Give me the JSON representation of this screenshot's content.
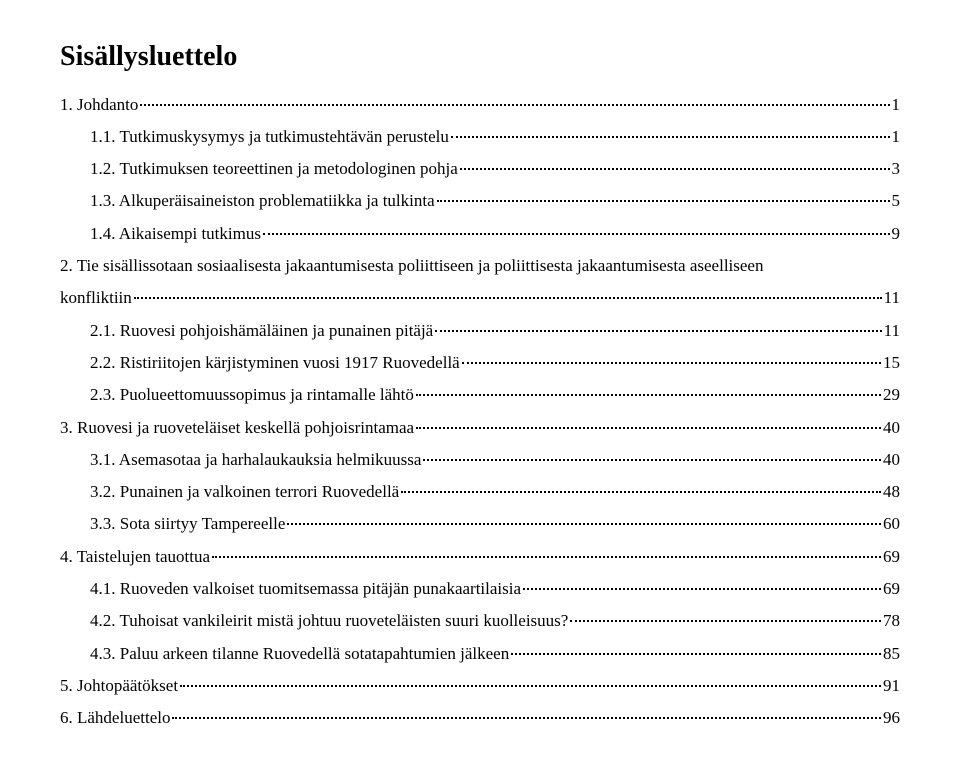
{
  "title": "Sisällysluettelo",
  "entries": [
    {
      "indent": 0,
      "label": "1. Johdanto",
      "page": "1"
    },
    {
      "indent": 1,
      "label": "1.1. Tutkimuskysymys ja tutkimustehtävän perustelu",
      "page": "1"
    },
    {
      "indent": 1,
      "label": "1.2. Tutkimuksen teoreettinen ja metodologinen pohja",
      "page": "3"
    },
    {
      "indent": 1,
      "label": "1.3. Alkuperäisaineiston problematiikka ja tulkinta",
      "page": "5"
    },
    {
      "indent": 1,
      "label": "1.4. Aikaisempi tutkimus",
      "page": "9"
    },
    {
      "indent": 0,
      "label": "2. Tie sisällissotaan sosiaalisesta jakaantumisesta poliittiseen ja poliittisesta jakaantumisesta aseelliseen konfliktiin",
      "page": "11",
      "wrap": true
    },
    {
      "indent": 1,
      "label": "2.1. Ruovesi pohjoishämäläinen ja punainen pitäjä",
      "page": "11"
    },
    {
      "indent": 1,
      "label": "2.2. Ristiriitojen kärjistyminen vuosi 1917 Ruovedellä",
      "page": "15"
    },
    {
      "indent": 1,
      "label": "2.3. Puolueettomuussopimus ja rintamalle lähtö",
      "page": "29"
    },
    {
      "indent": 0,
      "label": "3. Ruovesi ja ruoveteläiset keskellä pohjoisrintamaa",
      "page": "40"
    },
    {
      "indent": 1,
      "label": "3.1. Asemasotaa ja harhalaukauksia helmikuussa",
      "page": "40"
    },
    {
      "indent": 1,
      "label": "3.2. Punainen ja valkoinen terrori Ruovedellä",
      "page": "48"
    },
    {
      "indent": 1,
      "label": "3.3. Sota siirtyy Tampereelle",
      "page": "60"
    },
    {
      "indent": 0,
      "label": "4. Taistelujen tauottua",
      "page": "69"
    },
    {
      "indent": 1,
      "label": "4.1. Ruoveden valkoiset tuomitsemassa pitäjän punakaartilaisia",
      "page": "69"
    },
    {
      "indent": 1,
      "label": "4.2. Tuhoisat vankileirit mistä johtuu ruoveteläisten suuri kuolleisuus?",
      "page": "78"
    },
    {
      "indent": 1,
      "label": "4.3. Paluu arkeen tilanne Ruovedellä sotatapahtumien jälkeen",
      "page": "85"
    },
    {
      "indent": 0,
      "label": "5. Johtopäätökset",
      "page": "91"
    },
    {
      "indent": 0,
      "label": "6. Lähdeluettelo",
      "page": "96"
    }
  ]
}
